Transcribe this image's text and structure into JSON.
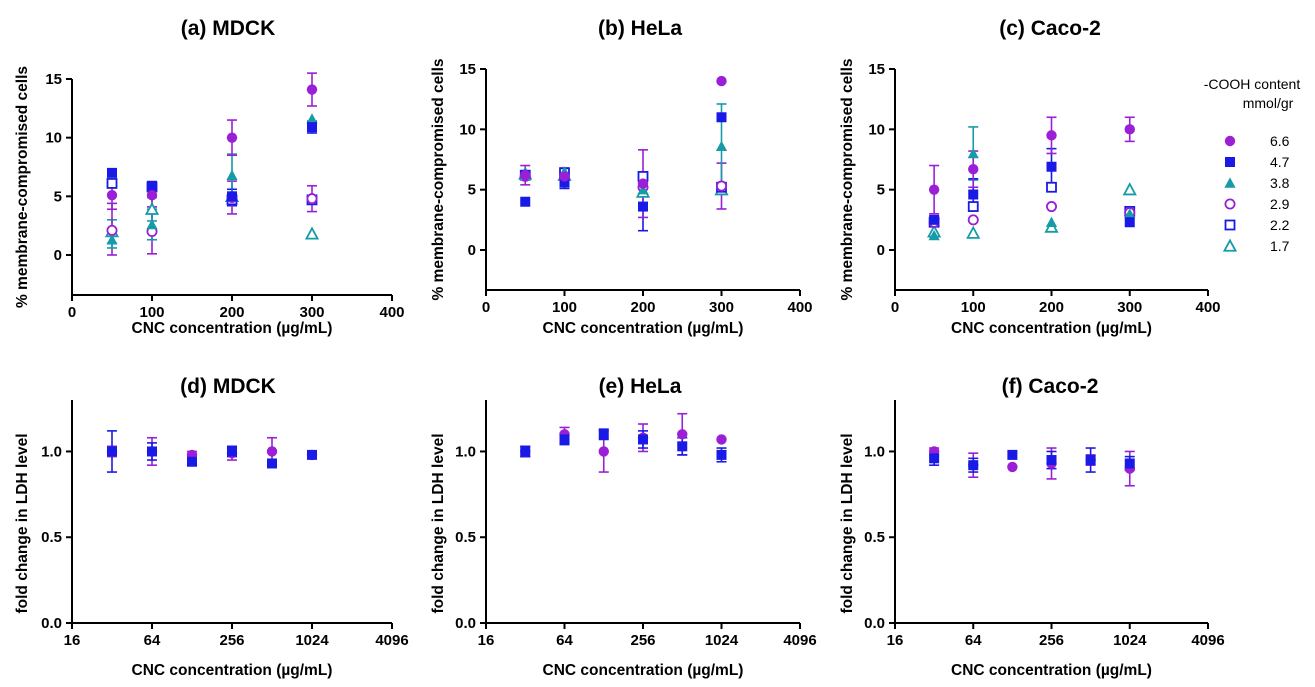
{
  "legend": {
    "title_line1": "-COOH content",
    "title_line2": "mmol/gr",
    "entries": [
      {
        "label": "6.6",
        "marker": "circle-filled",
        "color": "#9b1fd6"
      },
      {
        "label": "4.7",
        "marker": "square-filled",
        "color": "#1a1ae6"
      },
      {
        "label": "3.8",
        "marker": "triangle-filled",
        "color": "#169ba8"
      },
      {
        "label": "2.9",
        "marker": "circle-open",
        "color": "#9b1fd6"
      },
      {
        "label": "2.2",
        "marker": "square-open",
        "color": "#1a1ae6"
      },
      {
        "label": "1.7",
        "marker": "triangle-open",
        "color": "#169ba8"
      }
    ]
  },
  "chart_data": [
    {
      "type": "scatter",
      "title": "(a) MDCK",
      "xlabel": "CNC concentration (µg/mL)",
      "ylabel": "% membrane-compromised cells",
      "xscale": "linear",
      "xlim": [
        0,
        400
      ],
      "ylim": [
        0,
        15
      ],
      "xticks": [
        0,
        100,
        200,
        300,
        400
      ],
      "xtick_labels": [
        "0",
        "100",
        "200",
        "300",
        "400"
      ],
      "yticks": [
        0,
        5,
        10,
        15
      ],
      "ytick_labels": [
        "0",
        "5",
        "10",
        "15"
      ],
      "series": [
        {
          "name": "6.6",
          "x": [
            50,
            100,
            200,
            300
          ],
          "y": [
            5.1,
            5.1,
            10.0,
            14.1
          ],
          "err": [
            1.2,
            1.0,
            1.5,
            1.4
          ]
        },
        {
          "name": "4.7",
          "x": [
            50,
            100,
            200,
            300
          ],
          "y": [
            7.0,
            5.9,
            5.0,
            10.9
          ],
          "err": [
            0,
            0,
            0.6,
            0.5
          ]
        },
        {
          "name": "3.8",
          "x": [
            50,
            100,
            200,
            300
          ],
          "y": [
            1.3,
            2.6,
            6.8,
            11.6
          ],
          "err": [
            0.7,
            1.3,
            1.8,
            0
          ]
        },
        {
          "name": "2.9",
          "x": [
            50,
            100,
            200,
            300
          ],
          "y": [
            2.1,
            2.0,
            4.9,
            4.8
          ],
          "err": [
            2.3,
            1.9,
            1.4,
            1.1
          ]
        },
        {
          "name": "2.2",
          "x": [
            50,
            100,
            200,
            300
          ],
          "y": [
            6.1,
            5.8,
            4.7,
            4.7
          ],
          "err": [
            0,
            0,
            0.5,
            0
          ]
        },
        {
          "name": "1.7",
          "x": [
            50,
            100,
            200,
            300
          ],
          "y": [
            2.0,
            3.9,
            5.0,
            1.8
          ],
          "err": [
            1.0,
            1.0,
            0,
            0
          ]
        }
      ]
    },
    {
      "type": "scatter",
      "title": "(b) HeLa",
      "xlabel": "CNC concentration (µg/mL)",
      "ylabel": "% membrane-compromised cells",
      "xscale": "linear",
      "xlim": [
        0,
        400
      ],
      "ylim": [
        0,
        15
      ],
      "xticks": [
        0,
        100,
        200,
        300,
        400
      ],
      "xtick_labels": [
        "0",
        "100",
        "200",
        "300",
        "400"
      ],
      "yticks": [
        0,
        5,
        10,
        15
      ],
      "ytick_labels": [
        "0",
        "5",
        "10",
        "15"
      ],
      "series": [
        {
          "name": "6.6",
          "x": [
            50,
            100,
            200,
            300
          ],
          "y": [
            6.2,
            6.1,
            5.5,
            14.0
          ],
          "err": [
            0.8,
            0.7,
            2.8,
            0
          ]
        },
        {
          "name": "4.7",
          "x": [
            50,
            100,
            200,
            300
          ],
          "y": [
            4.0,
            5.6,
            3.6,
            11.0
          ],
          "err": [
            0,
            0.5,
            2.0,
            0
          ]
        },
        {
          "name": "3.8",
          "x": [
            50,
            100,
            200,
            300
          ],
          "y": [
            6.2,
            6.5,
            5.0,
            8.6
          ],
          "err": [
            0,
            0,
            0,
            3.5
          ]
        },
        {
          "name": "2.9",
          "x": [
            50,
            100,
            200,
            300
          ],
          "y": [
            6.1,
            6.0,
            5.2,
            5.3
          ],
          "err": [
            0,
            0,
            0,
            1.9
          ]
        },
        {
          "name": "2.2",
          "x": [
            50,
            100,
            200,
            300
          ],
          "y": [
            6.2,
            6.4,
            6.1,
            5.2
          ],
          "err": [
            0,
            0,
            0,
            0
          ]
        },
        {
          "name": "1.7",
          "x": [
            50,
            100,
            200,
            300
          ],
          "y": [
            6.3,
            6.2,
            4.8,
            5.0
          ],
          "err": [
            0,
            0,
            0,
            0
          ]
        }
      ]
    },
    {
      "type": "scatter",
      "title": "(c) Caco-2",
      "xlabel": "CNC concentration (µg/mL)",
      "ylabel": "% membrane-compromised cells",
      "xscale": "linear",
      "xlim": [
        0,
        400
      ],
      "ylim": [
        0,
        15
      ],
      "xticks": [
        0,
        100,
        200,
        300,
        400
      ],
      "xtick_labels": [
        "0",
        "100",
        "200",
        "300",
        "400"
      ],
      "yticks": [
        0,
        5,
        10,
        15
      ],
      "ytick_labels": [
        "0",
        "5",
        "10",
        "15"
      ],
      "series": [
        {
          "name": "6.6",
          "x": [
            50,
            100,
            200,
            300
          ],
          "y": [
            5.0,
            6.7,
            9.5,
            10.0
          ],
          "err": [
            2.0,
            1.5,
            1.5,
            1.0
          ]
        },
        {
          "name": "4.7",
          "x": [
            50,
            100,
            200,
            300
          ],
          "y": [
            2.5,
            4.6,
            6.9,
            2.3
          ],
          "err": [
            0,
            1.3,
            1.5,
            0
          ]
        },
        {
          "name": "3.8",
          "x": [
            50,
            100,
            200,
            300
          ],
          "y": [
            1.2,
            8.0,
            2.3,
            3.0
          ],
          "err": [
            0,
            2.2,
            0,
            0
          ]
        },
        {
          "name": "2.9",
          "x": [
            50,
            100,
            200,
            300
          ],
          "y": [
            2.3,
            2.5,
            3.6,
            3.1
          ],
          "err": [
            0,
            0,
            0,
            0
          ]
        },
        {
          "name": "2.2",
          "x": [
            50,
            100,
            200,
            300
          ],
          "y": [
            2.3,
            3.6,
            5.2,
            3.2
          ],
          "err": [
            0,
            0,
            0,
            0
          ]
        },
        {
          "name": "1.7",
          "x": [
            50,
            100,
            200,
            300
          ],
          "y": [
            1.5,
            1.4,
            1.9,
            5.0
          ],
          "err": [
            0,
            0,
            0,
            0
          ]
        }
      ]
    },
    {
      "type": "scatter",
      "title": "(d) MDCK",
      "xlabel": "CNC concentration (µg/mL)",
      "ylabel": "fold change in LDH level",
      "xscale": "log2",
      "xlim": [
        16,
        4096
      ],
      "ylim": [
        0,
        1.3
      ],
      "xticks": [
        16,
        64,
        256,
        1024,
        4096
      ],
      "xtick_labels": [
        "16",
        "64",
        "256",
        "1024",
        "4096"
      ],
      "yticks": [
        0,
        0.5,
        1.0
      ],
      "ytick_labels": [
        "0.0",
        "0.5",
        "1.0"
      ],
      "series": [
        {
          "name": "4.7",
          "x": [
            32,
            64,
            128,
            256,
            512,
            1024
          ],
          "y": [
            1.0,
            1.0,
            0.94,
            1.0,
            0.93,
            0.98
          ],
          "err": [
            0.12,
            0.05,
            0.02,
            0.03,
            0.02,
            0
          ]
        },
        {
          "name": "6.6",
          "x": [
            32,
            64,
            128,
            256,
            512,
            1024
          ],
          "y": [
            1.0,
            1.0,
            0.98,
            0.99,
            1.0,
            0.98
          ],
          "err": [
            0.03,
            0.08,
            0.02,
            0.04,
            0.08,
            0
          ]
        }
      ]
    },
    {
      "type": "scatter",
      "title": "(e) HeLa",
      "xlabel": "CNC concentration (µg/mL)",
      "ylabel": "fold change in LDH level",
      "xscale": "log2",
      "xlim": [
        16,
        4096
      ],
      "ylim": [
        0,
        1.3
      ],
      "xticks": [
        16,
        64,
        256,
        1024,
        4096
      ],
      "xtick_labels": [
        "16",
        "64",
        "256",
        "1024",
        "4096"
      ],
      "yticks": [
        0,
        0.5,
        1.0
      ],
      "ytick_labels": [
        "0.0",
        "0.5",
        "1.0"
      ],
      "series": [
        {
          "name": "4.7",
          "x": [
            32,
            64,
            128,
            256,
            512,
            1024
          ],
          "y": [
            1.0,
            1.07,
            1.1,
            1.07,
            1.03,
            0.98
          ],
          "err": [
            0.03,
            0.03,
            0.03,
            0.05,
            0.05,
            0.04
          ]
        },
        {
          "name": "6.6",
          "x": [
            32,
            64,
            128,
            256,
            512,
            1024
          ],
          "y": [
            1.0,
            1.1,
            1.0,
            1.08,
            1.1,
            1.07
          ],
          "err": [
            0.03,
            0.04,
            0.12,
            0.08,
            0.12,
            0
          ]
        }
      ]
    },
    {
      "type": "scatter",
      "title": "(f) Caco-2",
      "xlabel": "CNC concentration (µg/mL)",
      "ylabel": "fold change in LDH level",
      "xscale": "log2",
      "xlim": [
        16,
        4096
      ],
      "ylim": [
        0,
        1.3
      ],
      "xticks": [
        16,
        64,
        256,
        1024,
        4096
      ],
      "xtick_labels": [
        "16",
        "64",
        "256",
        "1024",
        "4096"
      ],
      "yticks": [
        0,
        0.5,
        1.0
      ],
      "ytick_labels": [
        "0.0",
        "0.5",
        "1.0"
      ],
      "series": [
        {
          "name": "4.7",
          "x": [
            32,
            64,
            128,
            256,
            512,
            1024
          ],
          "y": [
            0.96,
            0.92,
            0.98,
            0.95,
            0.95,
            0.93
          ],
          "err": [
            0.04,
            0.04,
            0,
            0.05,
            0.07,
            0.04
          ]
        },
        {
          "name": "6.6",
          "x": [
            32,
            64,
            128,
            256,
            512,
            1024
          ],
          "y": [
            1.0,
            0.92,
            0.91,
            0.93,
            0.95,
            0.9
          ],
          "err": [
            0.02,
            0.07,
            0,
            0.09,
            0.03,
            0.1
          ]
        }
      ]
    }
  ]
}
